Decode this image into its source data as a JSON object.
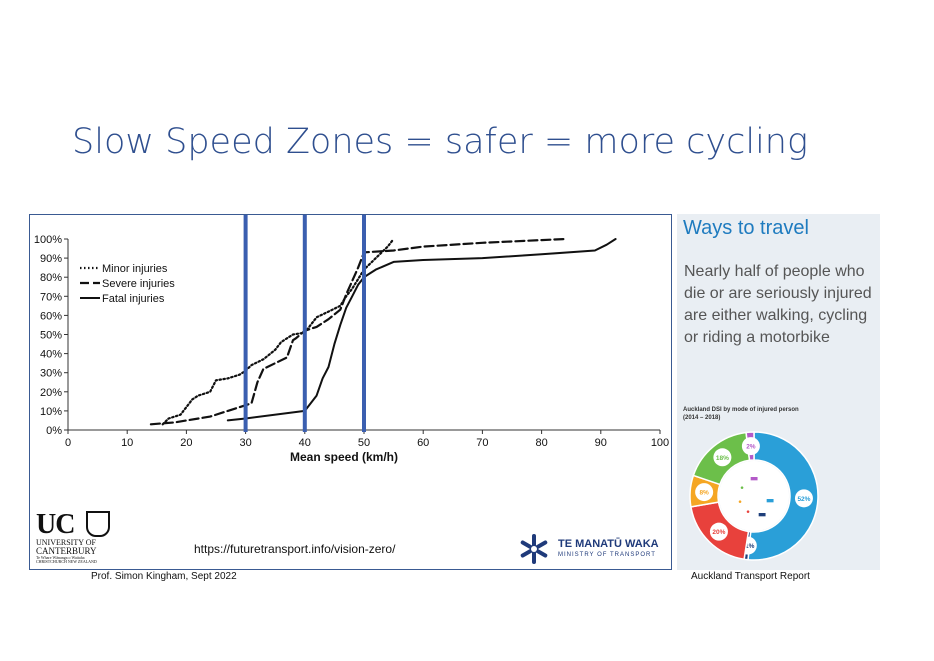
{
  "slide": {
    "title": "Slow Speed Zones = safer = more cycling",
    "credit_left": "Prof. Simon Kingham, Sept 2022",
    "credit_right": "Auckland Transport Report"
  },
  "chart_panel": {
    "url": "https://futuretransport.info/vision-zero/",
    "uc_logo": {
      "letters": "UC",
      "line1": "UNIVERSITY OF",
      "line2": "CANTERBURY",
      "line3": "Te Whare Wānanga o Waitaha",
      "line4": "CHRISTCHURCH NEW ZEALAND"
    },
    "ministry_logo": {
      "name": "TE MANATŪ WAKA",
      "sub": "MINISTRY OF TRANSPORT"
    }
  },
  "chart_data": {
    "type": "line",
    "title": "",
    "xlabel": "Mean speed (km/h)",
    "ylabel": "",
    "xlim": [
      0,
      100
    ],
    "ylim": [
      0,
      100
    ],
    "xticks": [
      0,
      10,
      20,
      30,
      40,
      50,
      60,
      70,
      80,
      90,
      100
    ],
    "yticks": [
      0,
      10,
      20,
      30,
      40,
      50,
      60,
      70,
      80,
      90,
      100
    ],
    "ytick_suffix": "%",
    "grid": false,
    "legend_position": "top-left",
    "reference_lines": {
      "x": [
        30,
        40,
        50
      ],
      "color": "#3b5fb0"
    },
    "series": [
      {
        "name": "Minor injuries",
        "style": "dotted",
        "points": [
          [
            16,
            3
          ],
          [
            17,
            6
          ],
          [
            19,
            8
          ],
          [
            20,
            12
          ],
          [
            21,
            16
          ],
          [
            22,
            18
          ],
          [
            24,
            20
          ],
          [
            25,
            26
          ],
          [
            27,
            27
          ],
          [
            29,
            29
          ],
          [
            30,
            31
          ],
          [
            31,
            34
          ],
          [
            33,
            37
          ],
          [
            35,
            42
          ],
          [
            36,
            46
          ],
          [
            37,
            48
          ],
          [
            38,
            50
          ],
          [
            40,
            51
          ],
          [
            41,
            55
          ],
          [
            42,
            59
          ],
          [
            44,
            62
          ],
          [
            46,
            65
          ],
          [
            47,
            70
          ],
          [
            48,
            74
          ],
          [
            49,
            79
          ],
          [
            50,
            84
          ],
          [
            52,
            90
          ],
          [
            54,
            96
          ],
          [
            55,
            100
          ]
        ]
      },
      {
        "name": "Severe injuries",
        "style": "dashed",
        "points": [
          [
            14,
            3
          ],
          [
            18,
            4
          ],
          [
            24,
            7
          ],
          [
            27,
            10
          ],
          [
            29,
            12
          ],
          [
            31,
            14
          ],
          [
            32,
            25
          ],
          [
            33,
            32
          ],
          [
            35,
            35
          ],
          [
            37,
            38
          ],
          [
            38,
            47
          ],
          [
            38.5,
            48
          ],
          [
            40,
            52
          ],
          [
            42,
            54
          ],
          [
            44,
            58
          ],
          [
            46,
            63
          ],
          [
            47,
            71
          ],
          [
            48,
            78
          ],
          [
            49,
            85
          ],
          [
            50,
            93
          ],
          [
            55,
            94
          ],
          [
            60,
            96
          ],
          [
            70,
            98
          ],
          [
            84,
            100
          ]
        ]
      },
      {
        "name": "Fatal injuries",
        "style": "solid",
        "points": [
          [
            27,
            5
          ],
          [
            30,
            6
          ],
          [
            40,
            10
          ],
          [
            42,
            18
          ],
          [
            43,
            27
          ],
          [
            44,
            33
          ],
          [
            45,
            45
          ],
          [
            46,
            55
          ],
          [
            47,
            64
          ],
          [
            48,
            70
          ],
          [
            49,
            76
          ],
          [
            50,
            80
          ],
          [
            51,
            82
          ],
          [
            52,
            84
          ],
          [
            55,
            88
          ],
          [
            60,
            89
          ],
          [
            70,
            90
          ],
          [
            80,
            92
          ],
          [
            89,
            94
          ],
          [
            91,
            97
          ],
          [
            92.5,
            100
          ]
        ]
      }
    ]
  },
  "info_panel": {
    "heading": "Ways to travel",
    "text": "Nearly half of people who die or are seriously injured are either walking, cycling or riding a motorbike",
    "caption_line1": "Auckland DSI by mode of injured person",
    "caption_line2": "(2014 – 2018)",
    "donut": {
      "segments": [
        {
          "label": "52%",
          "value": 52,
          "color": "#2a9fd8"
        },
        {
          "label": "<1%",
          "value": 1,
          "color": "#1e3f7a"
        },
        {
          "label": "20%",
          "value": 20,
          "color": "#e8413c"
        },
        {
          "label": "8%",
          "value": 8,
          "color": "#f5a623"
        },
        {
          "label": "18%",
          "value": 18,
          "color": "#6cbf4a"
        },
        {
          "label": "2%",
          "value": 2,
          "color": "#b35ac8"
        }
      ],
      "icons": [
        "truck-icon",
        "walker-icon",
        "car-icon",
        "cyclist-icon",
        "motorbike-icon",
        "bus-icon"
      ]
    }
  }
}
